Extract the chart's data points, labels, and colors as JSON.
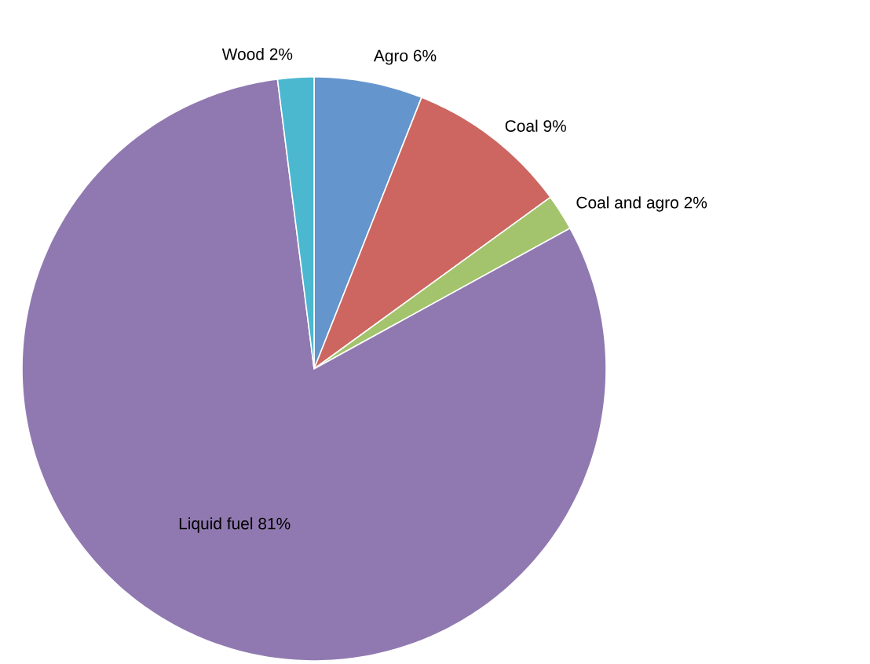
{
  "chart_data": {
    "type": "pie",
    "categories": [
      "Agro",
      "Coal",
      "Coal and agro",
      "Liquid fuel",
      "Wood"
    ],
    "values": [
      6,
      9,
      2,
      81,
      2
    ],
    "value_labels": [
      "6%",
      "9%",
      "2%",
      "81%",
      "2%"
    ],
    "colors": [
      "#6495cd",
      "#cd6660",
      "#a3c46c",
      "#9079b0",
      "#4bb8d0"
    ]
  }
}
